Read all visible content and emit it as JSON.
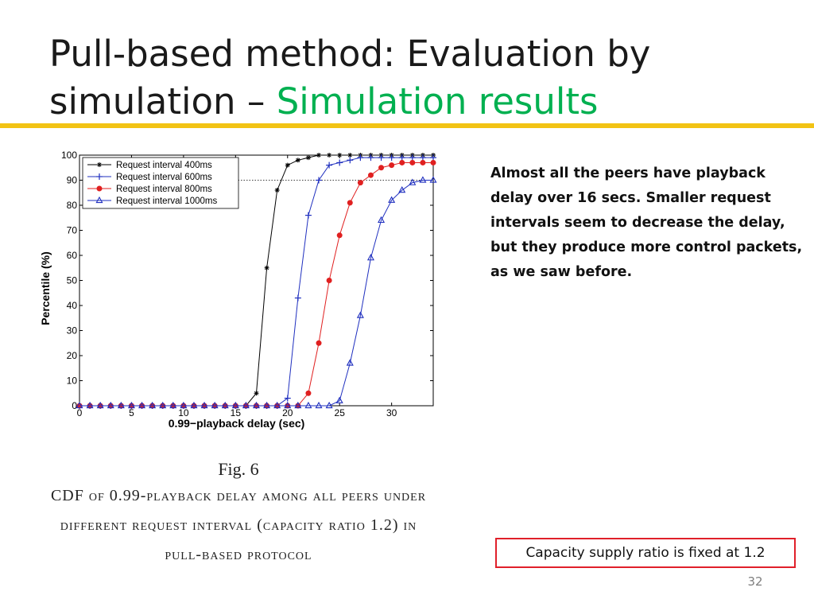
{
  "slide": {
    "title_main": "Pull-based method: Evaluation by simulation – ",
    "title_accent": "Simulation results",
    "body_text": "Almost all the peers have playback delay over 16 secs. Smaller request intervals seem to decrease the delay, but they produce more control packets, as we saw before.",
    "fig_label": "Fig. 6",
    "fig_caption": "CDF of 0.99-playback delay among all peers under different request interval (capacity ratio 1.2) in pull-based protocol",
    "note": "Capacity supply ratio is fixed at 1.2",
    "page_number": "32"
  },
  "chart_data": {
    "type": "line",
    "title": "",
    "xlabel": "0.99−playback delay (sec)",
    "ylabel": "Percentile (%)",
    "xlim": [
      0,
      34
    ],
    "ylim": [
      0,
      100
    ],
    "xticks": [
      0,
      5,
      10,
      15,
      20,
      25,
      30
    ],
    "yticks": [
      0,
      10,
      20,
      30,
      40,
      50,
      60,
      70,
      80,
      90,
      100
    ],
    "grid": false,
    "legend_position": "top-left",
    "reference_line": {
      "y": 90,
      "style": "dotted"
    },
    "series": [
      {
        "name": "Request interval 400ms",
        "color": "#000000",
        "marker": "star",
        "x": [
          0,
          1,
          2,
          3,
          4,
          5,
          6,
          7,
          8,
          9,
          10,
          11,
          12,
          13,
          14,
          15,
          16,
          17,
          18,
          19,
          20,
          21,
          22,
          23,
          24,
          25,
          26,
          27,
          28,
          29,
          30,
          31,
          32,
          33,
          34
        ],
        "y": [
          0,
          0,
          0,
          0,
          0,
          0,
          0,
          0,
          0,
          0,
          0,
          0,
          0,
          0,
          0,
          0,
          0,
          5,
          55,
          86,
          96,
          98,
          99,
          100,
          100,
          100,
          100,
          100,
          100,
          100,
          100,
          100,
          100,
          100,
          100
        ]
      },
      {
        "name": "Request interval 600ms",
        "color": "#1f2fbf",
        "marker": "plus",
        "x": [
          0,
          1,
          2,
          3,
          4,
          5,
          6,
          7,
          8,
          9,
          10,
          11,
          12,
          13,
          14,
          15,
          16,
          17,
          18,
          19,
          20,
          21,
          22,
          23,
          24,
          25,
          26,
          27,
          28,
          29,
          30,
          31,
          32,
          33,
          34
        ],
        "y": [
          0,
          0,
          0,
          0,
          0,
          0,
          0,
          0,
          0,
          0,
          0,
          0,
          0,
          0,
          0,
          0,
          0,
          0,
          0,
          0,
          3,
          43,
          76,
          90,
          96,
          97,
          98,
          99,
          99,
          99,
          99,
          99,
          99,
          99,
          99
        ]
      },
      {
        "name": "Request interval 800ms",
        "color": "#e02020",
        "marker": "circle",
        "x": [
          0,
          1,
          2,
          3,
          4,
          5,
          6,
          7,
          8,
          9,
          10,
          11,
          12,
          13,
          14,
          15,
          16,
          17,
          18,
          19,
          20,
          21,
          22,
          23,
          24,
          25,
          26,
          27,
          28,
          29,
          30,
          31,
          32,
          33,
          34
        ],
        "y": [
          0,
          0,
          0,
          0,
          0,
          0,
          0,
          0,
          0,
          0,
          0,
          0,
          0,
          0,
          0,
          0,
          0,
          0,
          0,
          0,
          0,
          0,
          5,
          25,
          50,
          68,
          81,
          89,
          92,
          95,
          96,
          97,
          97,
          97,
          97
        ]
      },
      {
        "name": "Request interval 1000ms",
        "color": "#1f2fbf",
        "marker": "triangle",
        "x": [
          0,
          1,
          2,
          3,
          4,
          5,
          6,
          7,
          8,
          9,
          10,
          11,
          12,
          13,
          14,
          15,
          16,
          17,
          18,
          19,
          20,
          21,
          22,
          23,
          24,
          25,
          26,
          27,
          28,
          29,
          30,
          31,
          32,
          33,
          34
        ],
        "y": [
          0,
          0,
          0,
          0,
          0,
          0,
          0,
          0,
          0,
          0,
          0,
          0,
          0,
          0,
          0,
          0,
          0,
          0,
          0,
          0,
          0,
          0,
          0,
          0,
          0,
          2,
          17,
          36,
          59,
          74,
          82,
          86,
          89,
          90,
          90
        ]
      }
    ]
  }
}
